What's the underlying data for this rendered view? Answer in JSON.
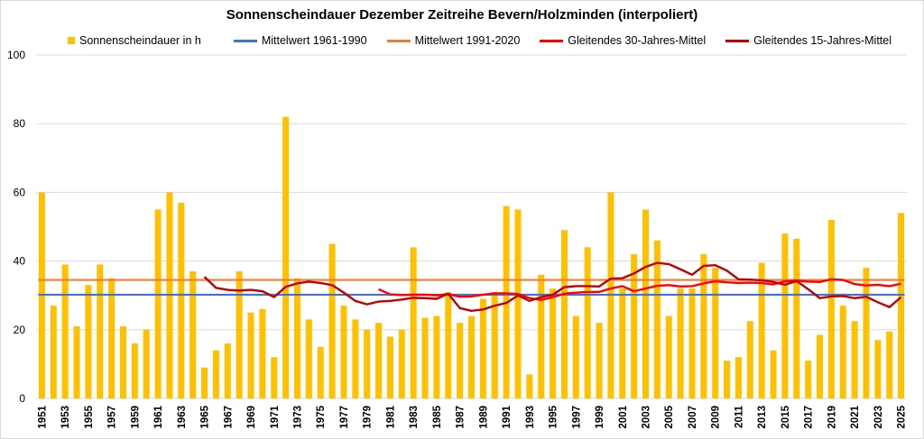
{
  "chart_data": {
    "type": "bar",
    "title": "Sonnenscheindauer Dezember Zeitreihe Bevern/Holzminden (interpoliert)",
    "xlabel": "",
    "ylabel": "",
    "ylim": [
      0,
      100
    ],
    "yticks": [
      0,
      20,
      40,
      60,
      80,
      100
    ],
    "grid": true,
    "legend_placement": "top",
    "first_year": 1951,
    "last_year": 2025,
    "label_step": 2,
    "series": [
      {
        "name": "Sonnenscheindauer in h",
        "kind": "bar",
        "color": "#FFC000",
        "values": [
          60,
          27,
          39,
          21,
          33,
          39,
          35,
          21,
          16,
          20,
          55,
          60,
          57,
          37,
          9,
          14,
          16,
          37,
          25,
          26,
          12,
          82,
          35,
          23,
          15,
          45,
          27,
          23,
          20,
          22,
          18,
          20,
          44,
          23.5,
          24,
          31,
          22,
          24,
          29,
          31,
          56,
          55,
          7,
          36,
          32,
          49,
          24,
          44,
          22,
          60,
          32,
          42,
          55,
          46,
          24,
          32,
          32,
          42,
          38,
          11,
          12,
          22.5,
          39.5,
          14,
          48,
          46.5,
          11,
          18.5,
          52,
          27,
          22.5,
          38,
          17,
          19.5,
          54
        ]
      },
      {
        "name": "Mittelwert 1961-1990",
        "kind": "hline",
        "color": "#4472C4",
        "value": 30.2
      },
      {
        "name": "Mittelwert 1991-2020",
        "kind": "hline",
        "color": "#ED7D31",
        "value": 34.5
      },
      {
        "name": "Gleitendes 30-Jahres-Mittel",
        "kind": "line",
        "color": "#FF0000",
        "start_year": 1980,
        "values": [
          31.8,
          30.3,
          30.1,
          30.2,
          30.2,
          30.0,
          30.4,
          29.6,
          29.7,
          30.2,
          30.6,
          30.6,
          30.4,
          29.2,
          28.7,
          29.5,
          30.5,
          30.8,
          31.0,
          31.0,
          32.0,
          32.7,
          31.2,
          32.0,
          32.8,
          33.0,
          32.6,
          32.7,
          33.5,
          34.1,
          33.8,
          33.6,
          33.7,
          33.6,
          33.2,
          34.1,
          34.3,
          34.0,
          33.9,
          34.7,
          34.5,
          33.3,
          32.9,
          33.1,
          32.7,
          33.4
        ]
      },
      {
        "name": "Gleitendes 15-Jahres-Mittel",
        "kind": "line",
        "color": "#C00000",
        "start_year": 1965,
        "values": [
          35.4,
          32.2,
          31.6,
          31.4,
          31.6,
          31.2,
          29.5,
          32.5,
          33.5,
          34.0,
          33.6,
          33.0,
          30.8,
          28.4,
          27.4,
          28.2,
          28.4,
          28.8,
          29.3,
          29.2,
          29.0,
          30.5,
          26.3,
          25.5,
          25.9,
          27.0,
          27.8,
          30.0,
          28.4,
          29.5,
          30.2,
          32.4,
          32.7,
          32.7,
          32.6,
          34.9,
          35.0,
          36.4,
          38.3,
          39.5,
          39.1,
          37.6,
          36.0,
          38.6,
          38.8,
          37.2,
          34.7,
          34.6,
          34.4,
          33.9,
          33.1,
          34.2,
          31.8,
          29.2,
          29.7,
          29.8,
          29.2,
          29.6,
          28.0,
          26.6,
          29.5
        ]
      }
    ]
  }
}
